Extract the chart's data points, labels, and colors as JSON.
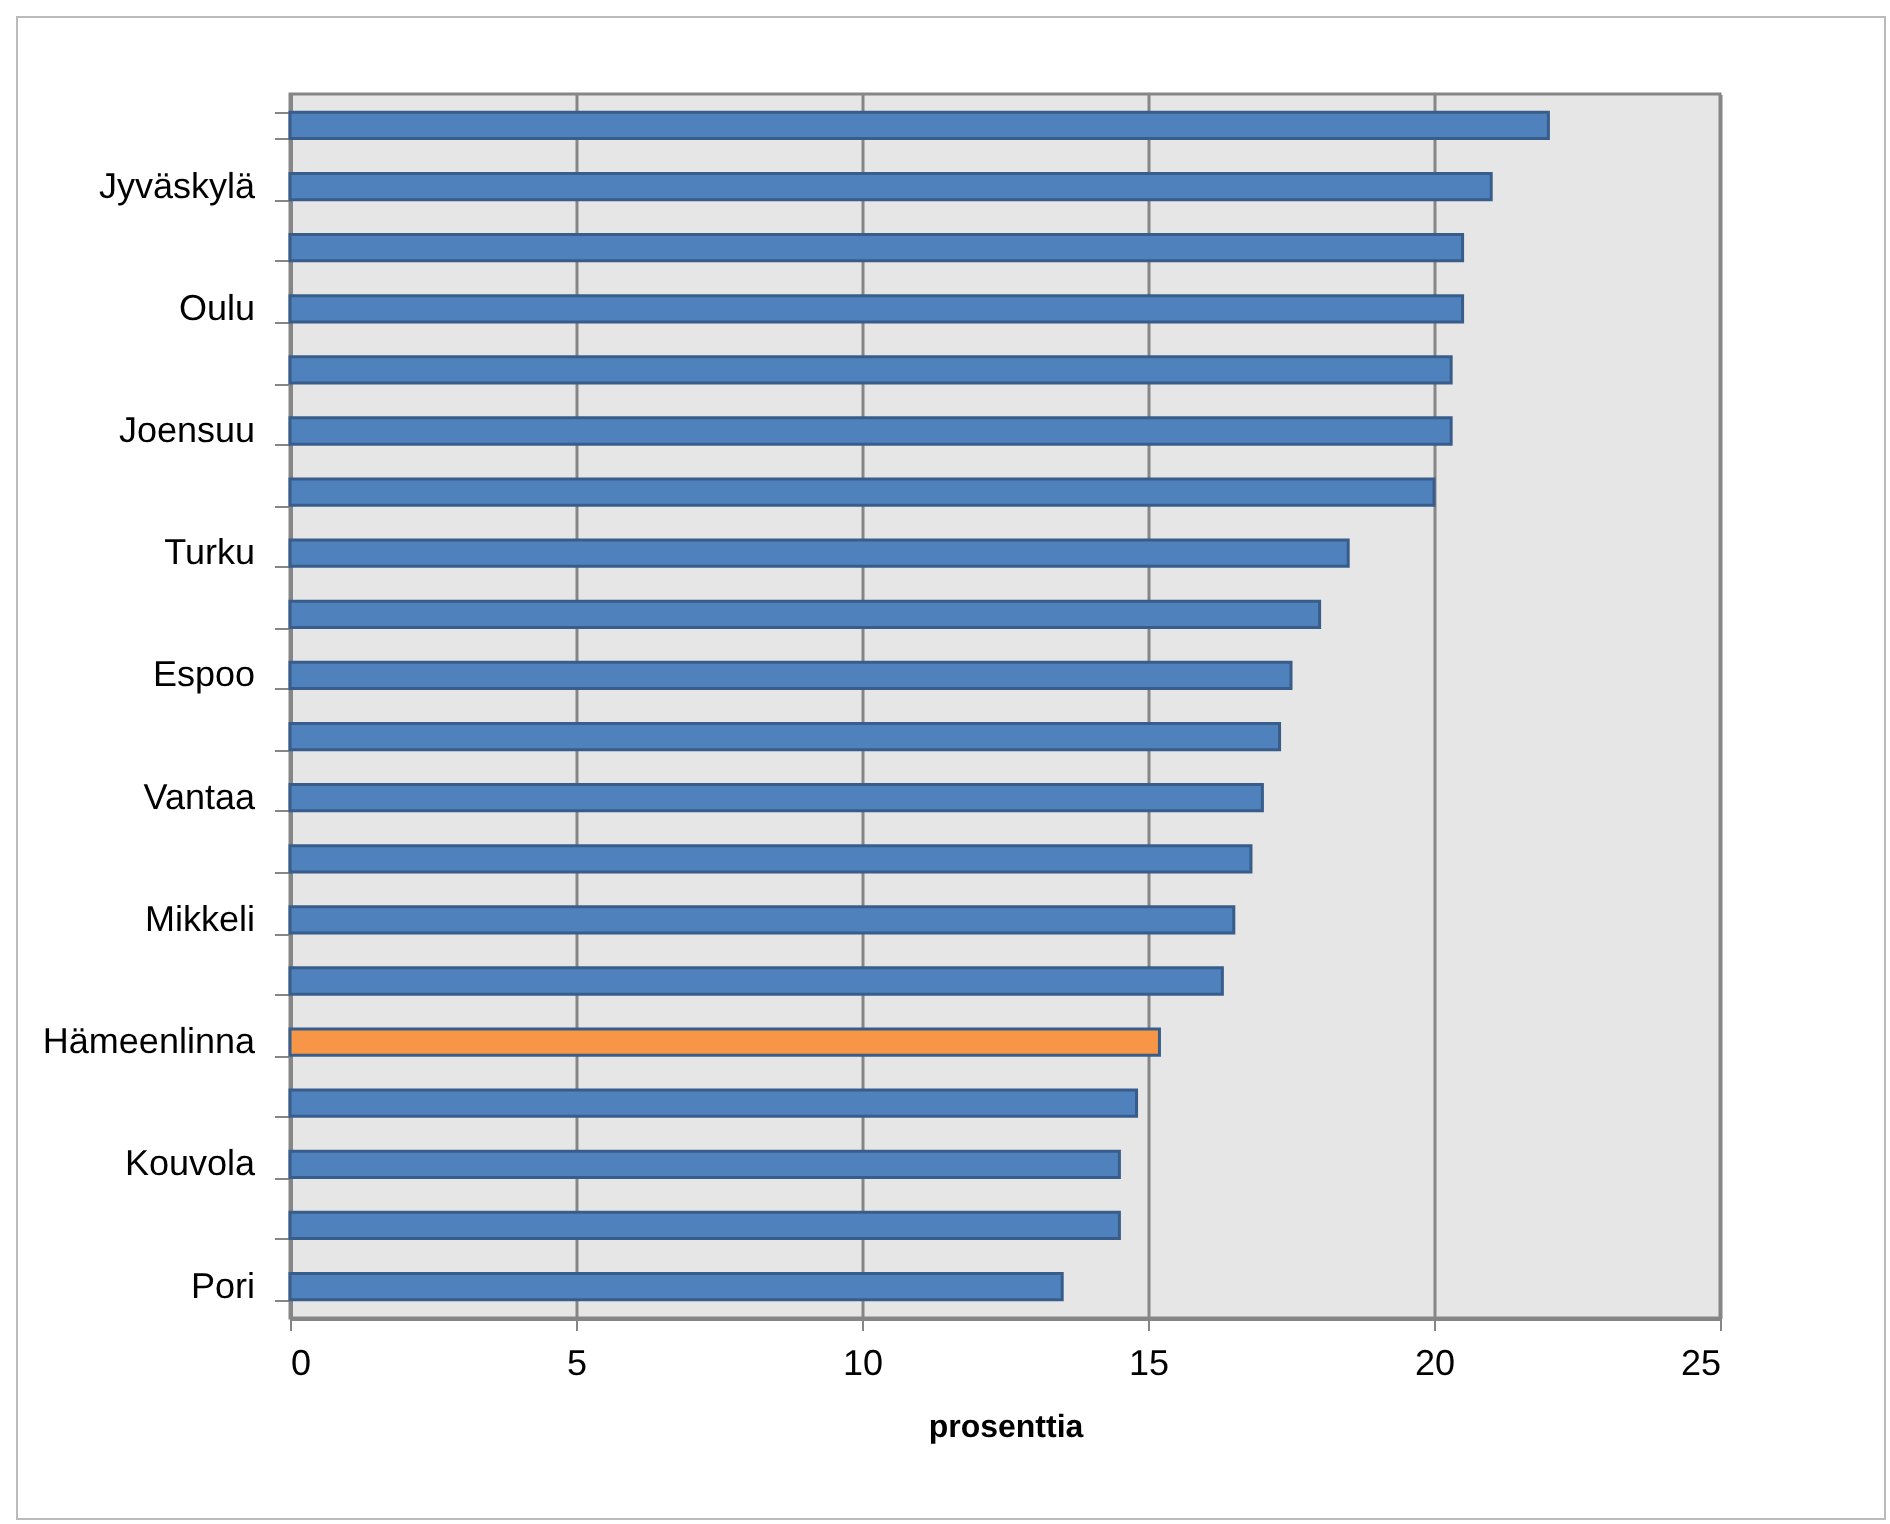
{
  "chart_data": {
    "type": "bar",
    "orientation": "horizontal",
    "xlabel": "prosenttia",
    "categories": [
      null,
      "Jyväskylä",
      null,
      "Oulu",
      null,
      "Joensuu",
      null,
      "Turku",
      null,
      "Espoo",
      null,
      "Vantaa",
      null,
      "Mikkeli",
      null,
      "Hämeenlinna",
      null,
      "Kouvola",
      null,
      "Pori"
    ],
    "values": [
      22.0,
      21.0,
      20.5,
      20.5,
      20.3,
      20.3,
      20.0,
      18.5,
      18.0,
      17.5,
      17.3,
      17.0,
      16.8,
      16.5,
      16.3,
      15.2,
      14.8,
      14.5,
      14.5,
      13.5
    ],
    "colors": [
      "#4f81bd",
      "#4f81bd",
      "#4f81bd",
      "#4f81bd",
      "#4f81bd",
      "#4f81bd",
      "#4f81bd",
      "#4f81bd",
      "#4f81bd",
      "#4f81bd",
      "#4f81bd",
      "#4f81bd",
      "#4f81bd",
      "#4f81bd",
      "#4f81bd",
      "#f79646",
      "#4f81bd",
      "#4f81bd",
      "#4f81bd",
      "#4f81bd"
    ],
    "xlim": [
      0,
      25
    ],
    "xticks": [
      0,
      5,
      10,
      15,
      20,
      25
    ],
    "grid": "x"
  }
}
